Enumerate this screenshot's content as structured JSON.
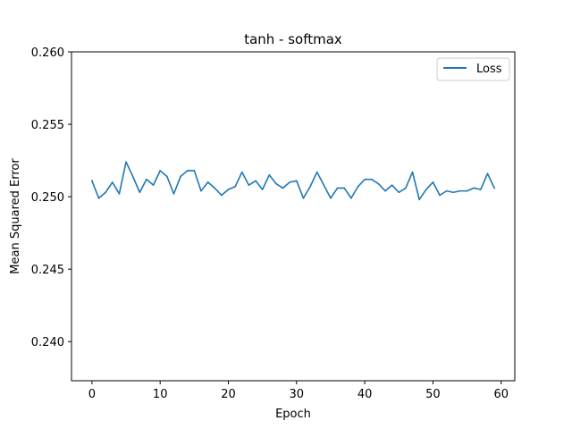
{
  "chart_data": {
    "type": "line",
    "title": "tanh - softmax",
    "xlabel": "Epoch",
    "ylabel": "Mean Squared Error",
    "xlim": [
      -3.0,
      62.0
    ],
    "ylim": [
      0.2373,
      0.26
    ],
    "xticks": [
      0,
      10,
      20,
      30,
      40,
      50,
      60
    ],
    "yticks": [
      0.24,
      0.245,
      0.25,
      0.255,
      0.26
    ],
    "xtick_labels": [
      "0",
      "10",
      "20",
      "30",
      "40",
      "50",
      "60"
    ],
    "ytick_labels": [
      "0.240",
      "0.245",
      "0.250",
      "0.255",
      "0.260"
    ],
    "grid": false,
    "legend": {
      "position": "top-right"
    },
    "series": [
      {
        "name": "Loss",
        "color": "#1f77b4",
        "x": [
          0,
          1,
          2,
          3,
          4,
          5,
          6,
          7,
          8,
          9,
          10,
          11,
          12,
          13,
          14,
          15,
          16,
          17,
          18,
          19,
          20,
          21,
          22,
          23,
          24,
          25,
          26,
          27,
          28,
          29,
          30,
          31,
          32,
          33,
          34,
          35,
          36,
          37,
          38,
          39,
          40,
          41,
          42,
          43,
          44,
          45,
          46,
          47,
          48,
          49,
          50,
          51,
          52,
          53,
          54,
          55,
          56,
          57,
          58,
          59
        ],
        "values": [
          0.2511,
          0.2499,
          0.2503,
          0.251,
          0.2502,
          0.2524,
          0.2514,
          0.2503,
          0.2512,
          0.2508,
          0.2518,
          0.2514,
          0.2502,
          0.2514,
          0.2518,
          0.2518,
          0.2504,
          0.251,
          0.2506,
          0.2501,
          0.2505,
          0.2507,
          0.2517,
          0.2508,
          0.2511,
          0.2505,
          0.2515,
          0.2509,
          0.2506,
          0.251,
          0.2511,
          0.2499,
          0.2507,
          0.2517,
          0.2508,
          0.2499,
          0.2506,
          0.2506,
          0.2499,
          0.2507,
          0.2512,
          0.2512,
          0.2509,
          0.2504,
          0.2508,
          0.2503,
          0.2506,
          0.2517,
          0.2498,
          0.2505,
          0.251,
          0.2501,
          0.2504,
          0.2503,
          0.2504,
          0.2504,
          0.2506,
          0.2505,
          0.2516,
          0.2506
        ]
      }
    ]
  }
}
